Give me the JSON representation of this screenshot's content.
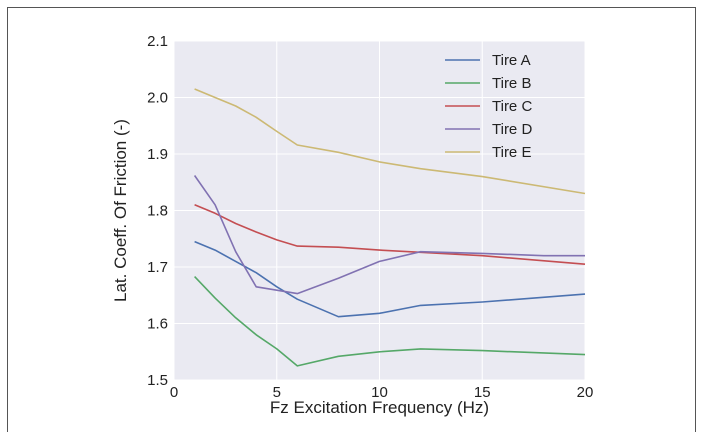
{
  "chart_data": {
    "type": "line",
    "title": "",
    "xlabel": "Fz Excitation Frequency (Hz)",
    "ylabel": "Lat. Coeff. Of Friction (-)",
    "xlim": [
      0,
      20
    ],
    "ylim": [
      1.5,
      2.1
    ],
    "xticks": [
      0,
      5,
      10,
      15,
      20
    ],
    "yticks": [
      1.5,
      1.6,
      1.7,
      1.8,
      1.9,
      2.0,
      2.1
    ],
    "xtick_labels": [
      "0",
      "5",
      "10",
      "15",
      "20"
    ],
    "ytick_labels": [
      "1.5",
      "1.6",
      "1.7",
      "1.8",
      "1.9",
      "2.0",
      "2.1"
    ],
    "grid": true,
    "legend_position": "top-right",
    "series": [
      {
        "name": "Tire A",
        "color": "#4c72b0",
        "x": [
          1,
          2,
          3,
          4,
          5,
          6,
          8,
          10,
          12,
          15,
          20
        ],
        "y": [
          1.745,
          1.73,
          1.71,
          1.69,
          1.665,
          1.643,
          1.612,
          1.618,
          1.632,
          1.638,
          1.652
        ]
      },
      {
        "name": "Tire B",
        "color": "#55a868",
        "x": [
          1,
          2,
          3,
          4,
          5,
          6,
          8,
          10,
          12,
          15,
          20
        ],
        "y": [
          1.683,
          1.645,
          1.61,
          1.58,
          1.555,
          1.525,
          1.542,
          1.55,
          1.555,
          1.552,
          1.545
        ]
      },
      {
        "name": "Tire C",
        "color": "#c44e52",
        "x": [
          1,
          2,
          3,
          4,
          5,
          6,
          8,
          10,
          12,
          15,
          20
        ],
        "y": [
          1.81,
          1.795,
          1.777,
          1.762,
          1.748,
          1.737,
          1.735,
          1.73,
          1.726,
          1.72,
          1.705
        ]
      },
      {
        "name": "Tire D",
        "color": "#8172b2",
        "x": [
          1,
          2,
          3,
          4,
          6,
          8,
          10,
          12,
          15,
          18,
          20
        ],
        "y": [
          1.862,
          1.81,
          1.727,
          1.665,
          1.653,
          1.68,
          1.71,
          1.727,
          1.724,
          1.72,
          1.72
        ]
      },
      {
        "name": "Tire E",
        "color": "#ccb974",
        "x": [
          1,
          2,
          3,
          4,
          5,
          6,
          8,
          10,
          12,
          15,
          20
        ],
        "y": [
          2.015,
          2.0,
          1.985,
          1.965,
          1.94,
          1.916,
          1.903,
          1.886,
          1.874,
          1.86,
          1.83
        ]
      }
    ]
  }
}
